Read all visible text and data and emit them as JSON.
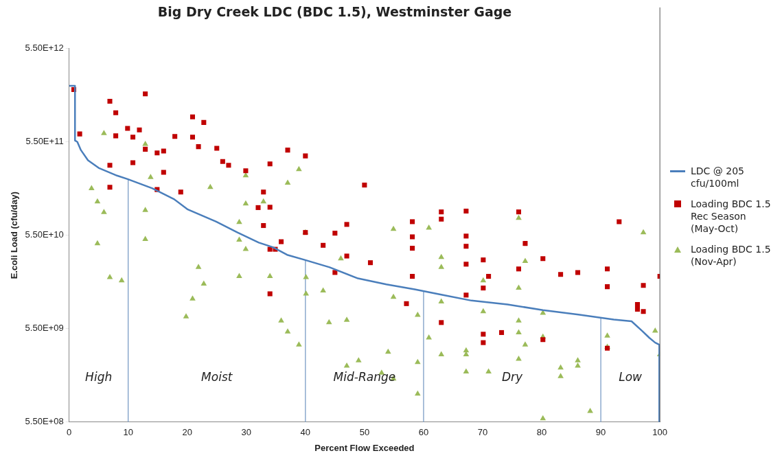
{
  "chart_data": {
    "type": "scatter",
    "title": "Big Dry Creek LDC (BDC 1.5), Westminster Gage",
    "xlabel": "Percent Flow Exceeded",
    "ylabel": "E.coli Load (cfu/day)",
    "xlim": [
      0,
      100
    ],
    "xticks": [
      0,
      10,
      20,
      30,
      40,
      50,
      60,
      70,
      80,
      90,
      100
    ],
    "ylim": [
      550000000.0,
      5500000000000.0
    ],
    "yticks": [
      {
        "value": 550000000.0,
        "label": "5.50E+08"
      },
      {
        "value": 5500000000.0,
        "label": "5.50E+09"
      },
      {
        "value": 55000000000.0,
        "label": "5.50E+10"
      },
      {
        "value": 550000000000.0,
        "label": "5.50E+11"
      },
      {
        "value": 5500000000000.0,
        "label": "5.50E+12"
      }
    ],
    "log": "y",
    "grid": false,
    "legend": "right",
    "series": [
      {
        "name": "LDC @ 205 cfu/100ml",
        "type": "line",
        "marker": "none",
        "line_style": "solid",
        "color": "#4a7ebb",
        "x": [
          0,
          1,
          1,
          1.4,
          2,
          3.2,
          5,
          8.1,
          9.9,
          14.1,
          17.7,
          20.1,
          24.9,
          28.5,
          32.1,
          34.5,
          36.9,
          39.9,
          44.1,
          48.9,
          53.7,
          58.5,
          63.3,
          68.1,
          74.2,
          80.2,
          86.2,
          92.2,
          95.2,
          97,
          98.2,
          99.2,
          99.9,
          99.9
        ],
        "values": [
          2200000000000.0,
          2200000000000.0,
          570000000000.0,
          550000000000.0,
          450000000000.0,
          350000000000.0,
          290000000000.0,
          240000000000.0,
          220000000000.0,
          175000000000.0,
          135000000000.0,
          104000000000.0,
          77000000000.0,
          59000000000.0,
          46000000000.0,
          41000000000.0,
          34000000000.0,
          30000000000.0,
          25000000000.0,
          19000000000.0,
          16400000000.0,
          14500000000.0,
          12600000000.0,
          11000000000.0,
          10000000000.0,
          8700000000.0,
          7800000000.0,
          6900000000.0,
          6600000000.0,
          5200000000.0,
          4400000000.0,
          3900000000.0,
          3700000000.0,
          550000000.0
        ]
      },
      {
        "name": "Loading BDC 1.5 Rec Season (May-Oct)",
        "marker": "square",
        "color": "#c00000",
        "x": [
          0.8,
          1.8,
          6.9,
          7.9,
          7.9,
          9.9,
          10.8,
          11.9,
          12.9,
          6.9,
          6.9,
          10.8,
          12.9,
          14.9,
          16,
          16,
          14.9,
          17.9,
          18.9,
          20.9,
          20.9,
          22.8,
          21.9,
          25,
          26,
          27,
          29.9,
          34,
          32.9,
          32,
          34,
          32.9,
          34,
          34.9,
          35.9,
          34,
          37,
          40,
          50,
          40,
          45,
          47,
          43,
          47,
          51,
          45,
          58.1,
          58.1,
          58.1,
          58.1,
          57.1,
          63,
          63,
          63,
          67.2,
          67.2,
          67.2,
          67.2,
          67.2,
          76.1,
          77.2,
          80.2,
          76.1,
          70.1,
          71,
          70.1,
          70.1,
          70.1,
          73.2,
          80.2,
          83.2,
          86.1,
          91.1,
          91.1,
          93.1,
          97.2,
          96.2,
          96.2,
          97.2,
          91.1,
          100
        ],
        "values": [
          2000000000000.0,
          670000000000.0,
          1500000000000.0,
          1130000000000.0,
          640000000000.0,
          770000000000.0,
          620000000000.0,
          740000000000.0,
          1800000000000.0,
          310000000000.0,
          180000000000.0,
          330000000000.0,
          460000000000.0,
          420000000000.0,
          440000000000.0,
          260000000000.0,
          170000000000.0,
          630000000000.0,
          160000000000.0,
          1020000000000.0,
          620000000000.0,
          890000000000.0,
          490000000000.0,
          470000000000.0,
          340000000000.0,
          310000000000.0,
          270000000000.0,
          320000000000.0,
          160000000000.0,
          109000000000.0,
          110000000000.0,
          70000000000.0,
          39000000000.0,
          39000000000.0,
          47000000000.0,
          13000000000.0,
          450000000000.0,
          390000000000.0,
          190000000000.0,
          59000000000.0,
          58000000000.0,
          72000000000.0,
          43000000000.0,
          33000000000.0,
          28000000000.0,
          22000000000.0,
          77000000000.0,
          53000000000.0,
          40000000000.0,
          20000000000.0,
          10200000000.0,
          98000000000.0,
          82000000000.0,
          6400000000.0,
          100000000000.0,
          54000000000.0,
          42000000000.0,
          27000000000.0,
          12600000000.0,
          98000000000.0,
          45000000000.0,
          31000000000.0,
          24000000000.0,
          30000000000.0,
          20000000000.0,
          15000000000.0,
          4800000000.0,
          3900000000.0,
          5000000000.0,
          4200000000.0,
          21000000000.0,
          22000000000.0,
          24000000000.0,
          15500000000.0,
          77000000000.0,
          16000000000.0,
          10000000000.0,
          8900000000.0,
          8400000000.0,
          3400000000.0,
          20000000000.0
        ]
      },
      {
        "name": "Loading BDC 1.5 (Nov-Apr)",
        "marker": "triangle",
        "color": "#9bbb59",
        "x": [
          5.9,
          12.9,
          13.8,
          3.8,
          4.8,
          5.9,
          12.9,
          4.8,
          12.9,
          6.9,
          8.9,
          23.9,
          29.9,
          29.9,
          32.9,
          28.8,
          28.8,
          29.9,
          28.8,
          34,
          21.9,
          22.8,
          20.9,
          19.8,
          38.9,
          37,
          40,
          46,
          40.1,
          40.1,
          43,
          35.9,
          37,
          38.9,
          44,
          47,
          47,
          49,
          52.9,
          54,
          54.9,
          54.9,
          54.9,
          59,
          59,
          59,
          60.9,
          60.9,
          63,
          63,
          63,
          63,
          67.2,
          67.2,
          67.2,
          76.1,
          77.2,
          70.1,
          76.1,
          70.1,
          80.2,
          76.1,
          76.1,
          77.2,
          80.2,
          76.1,
          71,
          83.2,
          83.2,
          86.1,
          86.1,
          80.2,
          88.2,
          91.1,
          91.1,
          97.2,
          99.2,
          100
        ],
        "values": [
          680000000000.0,
          520000000000.0,
          230000000000.0,
          175000000000.0,
          126000000000.0,
          97000000000.0,
          102000000000.0,
          45000000000.0,
          50000000000.0,
          19500000000.0,
          18000000000.0,
          180000000000.0,
          240000000000.0,
          120000000000.0,
          126000000000.0,
          76000000000.0,
          49000000000.0,
          39000000000.0,
          20000000000.0,
          20000000000.0,
          25000000000.0,
          16600000000.0,
          11500000000.0,
          7400000000.0,
          280000000000.0,
          200000000000.0,
          59000000000.0,
          31000000000.0,
          19500000000.0,
          13000000000.0,
          14000000000.0,
          6700000000.0,
          5100000000.0,
          3700000000.0,
          6400000000.0,
          6800000000.0,
          2200000000.0,
          2500000000.0,
          1850000000.0,
          3100000000.0,
          1600000000.0,
          12000000000.0,
          64000000000.0,
          7700000000.0,
          2400000000.0,
          1100000000.0,
          66000000000.0,
          4400000000.0,
          32000000000.0,
          25000000000.0,
          10700000000.0,
          2900000000.0,
          3200000000.0,
          2900000000.0,
          1900000000.0,
          84000000000.0,
          29000000000.0,
          18000000000.0,
          15000000000.0,
          8400000000.0,
          8100000000.0,
          6700000000.0,
          5000000000.0,
          3700000000.0,
          4500000000.0,
          2600000000.0,
          1900000000.0,
          2100000000.0,
          1700000000.0,
          2500000000.0,
          2200000000.0,
          600000000.0,
          720000000.0,
          4600000000.0,
          3500000000.0,
          59000000000.0,
          5200000000.0,
          2900000000.0
        ]
      }
    ],
    "ref_lines": [
      {
        "axis": "x",
        "value": 10,
        "color": "#7a9cc6"
      },
      {
        "axis": "x",
        "value": 40,
        "color": "#7a9cc6"
      },
      {
        "axis": "x",
        "value": 60,
        "color": "#7a9cc6"
      },
      {
        "axis": "x",
        "value": 90,
        "color": "#7a9cc6"
      }
    ],
    "annotations": [
      "High",
      "Moist",
      "Mid-Range",
      "Dry",
      "Low"
    ]
  }
}
